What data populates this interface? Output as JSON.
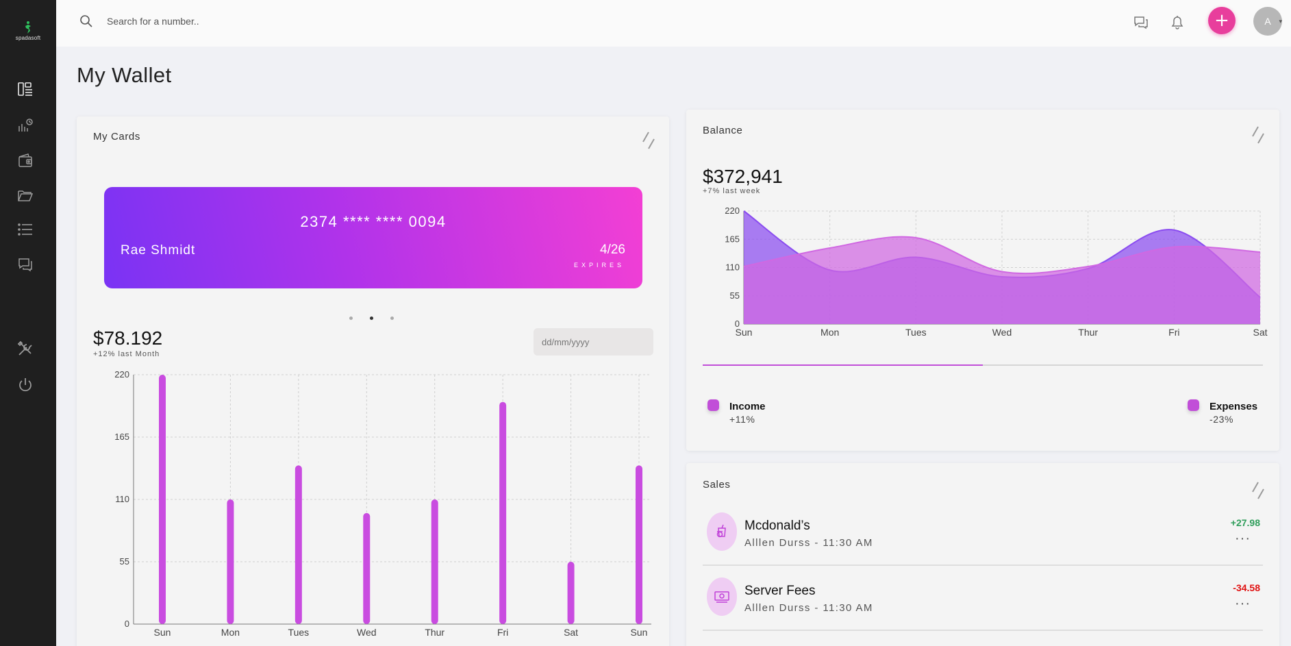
{
  "app": {
    "logo_text": "spadasoft"
  },
  "search": {
    "placeholder": "Search for a number.."
  },
  "header": {
    "avatar_initial": "A",
    "add_label": "+"
  },
  "page": {
    "title": "My Wallet"
  },
  "sidebar": {
    "items": [
      {
        "name": "dashboard",
        "icon": "dashboard-icon"
      },
      {
        "name": "analytics",
        "icon": "analytics-icon"
      },
      {
        "name": "wallet",
        "icon": "wallet-icon"
      },
      {
        "name": "folders",
        "icon": "folder-icon"
      },
      {
        "name": "list",
        "icon": "list-icon"
      },
      {
        "name": "messages",
        "icon": "chat-icon"
      },
      {
        "name": "tools",
        "icon": "tools-icon"
      },
      {
        "name": "logout",
        "icon": "power-icon"
      }
    ]
  },
  "my_cards": {
    "title": "My Cards",
    "card": {
      "number": "2374 **** **** 0094",
      "holder": "Rae Shmidt",
      "expiry": "4/26",
      "expiry_label": "EXPIRES"
    },
    "carousel": {
      "count": 3,
      "active": 1
    },
    "amount": "$78.192",
    "change": "+12% last Month",
    "date_placeholder": "dd/mm/yyyy"
  },
  "balance": {
    "title": "Balance",
    "amount": "$372,941",
    "change": "+7% last week",
    "progress": 0.5,
    "legend": [
      {
        "name": "Income",
        "pct": "+11%",
        "color": "#c14fd8"
      },
      {
        "name": "Expenses",
        "pct": "-23%",
        "color": "#c14fd8"
      }
    ]
  },
  "sales": {
    "title": "Sales",
    "items": [
      {
        "name": "Mcdonald’s",
        "sub": "Alllen Durss - 11:30 AM",
        "amount": "+27.98",
        "color": "#2e9d5a",
        "icon": "food-icon"
      },
      {
        "name": "Server Fees",
        "sub": "Alllen Durss - 11:30 AM",
        "amount": "-34.58",
        "color": "#e01010",
        "icon": "money-icon"
      }
    ]
  },
  "chart_data": [
    {
      "type": "bar",
      "categories": [
        "Sun",
        "Mon",
        "Tues",
        "Wed",
        "Thur",
        "Fri",
        "Sat",
        "Sun"
      ],
      "values": [
        220,
        110,
        140,
        98,
        110,
        196,
        55,
        140
      ],
      "ylim": [
        0,
        220
      ],
      "yticks": [
        0,
        55,
        110,
        165,
        220
      ],
      "grid": true,
      "color": "#c94ce0"
    },
    {
      "type": "area",
      "categories": [
        "Sun",
        "Mon",
        "Tues",
        "Wed",
        "Thur",
        "Fri",
        "Sat"
      ],
      "series": [
        {
          "values": [
            220,
            105,
            130,
            92,
            108,
            183,
            52
          ],
          "color": "#8a4cf0"
        },
        {
          "values": [
            112,
            148,
            168,
            102,
            112,
            150,
            140
          ],
          "color": "#d068e2"
        }
      ],
      "ylim": [
        0,
        220
      ],
      "yticks": [
        0,
        55,
        110,
        165,
        220
      ],
      "grid": true
    }
  ]
}
